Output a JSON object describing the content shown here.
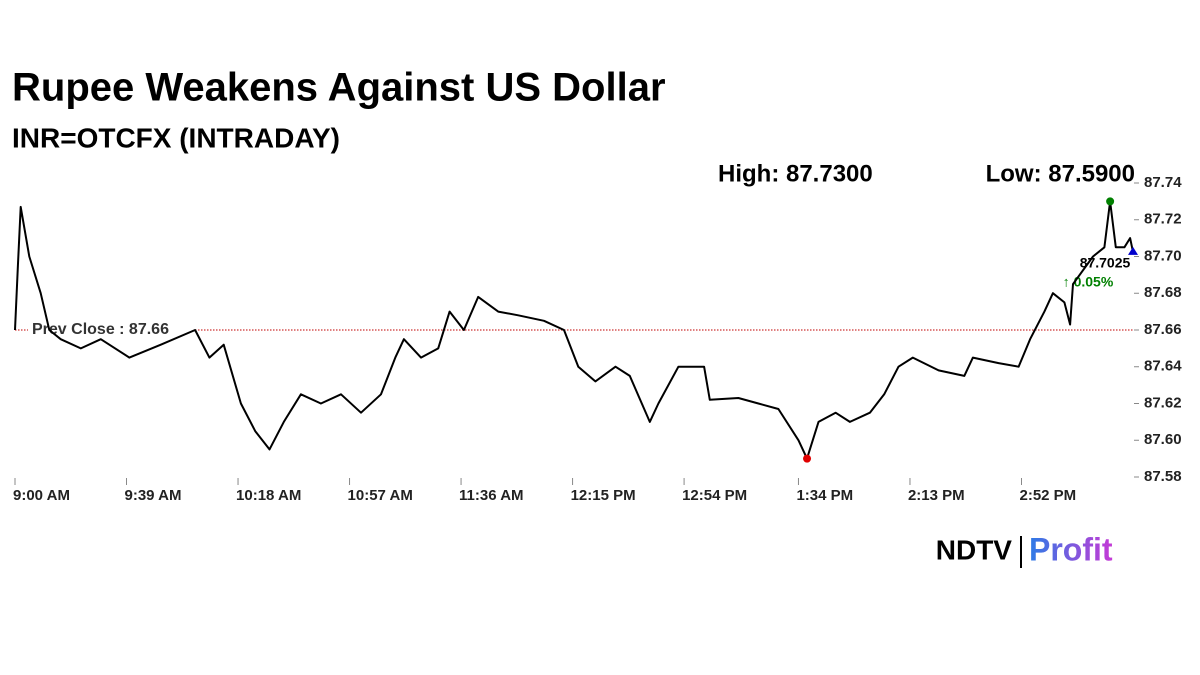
{
  "chart_data": {
    "type": "line",
    "title": "Rupee Weakens Against US Dollar",
    "subtitle": "INR=OTCFX (INTRADAY)",
    "high_label": "High: 87.7300",
    "low_label": "Low: 87.5900",
    "prev_close": 87.66,
    "prev_close_label": "Prev Close : 87.66",
    "change_label": "↑ 0.05%",
    "color": "#000000",
    "prev_close_color": "#c00000",
    "high_color": "#008000",
    "low_color": "#e00000",
    "last_color": "#0000cc",
    "x": [
      "09:00",
      "09:01",
      "09:02",
      "09:05",
      "09:09",
      "09:12",
      "09:16",
      "09:23",
      "09:30",
      "09:40",
      "09:51",
      "10:03",
      "10:08",
      "10:13",
      "10:19",
      "10:24",
      "10:29",
      "10:34",
      "10:40",
      "10:47",
      "10:54",
      "11:01",
      "11:08",
      "11:13",
      "11:16",
      "11:22",
      "11:28",
      "11:32",
      "11:37",
      "11:42",
      "11:49",
      "11:56",
      "12:05",
      "12:12",
      "12:17",
      "12:23",
      "12:30",
      "12:35",
      "12:42",
      "12:45",
      "12:52",
      "13:01",
      "13:03",
      "13:13",
      "13:20",
      "13:27",
      "13:34",
      "13:37",
      "13:41",
      "13:47",
      "13:52",
      "13:59",
      "14:04",
      "14:09",
      "14:14",
      "14:23",
      "14:32",
      "14:35",
      "14:44",
      "14:51",
      "14:55",
      "15:00",
      "15:03",
      "15:07",
      "15:09",
      "15:10",
      "15:17",
      "15:21",
      "15:23",
      "15:25",
      "15:28",
      "15:30",
      "15:31"
    ],
    "values": [
      87.66,
      87.695,
      87.727,
      87.7,
      87.68,
      87.66,
      87.655,
      87.65,
      87.655,
      87.645,
      87.652,
      87.66,
      87.645,
      87.652,
      87.62,
      87.605,
      87.595,
      87.61,
      87.625,
      87.62,
      87.625,
      87.615,
      87.625,
      87.645,
      87.655,
      87.645,
      87.65,
      87.67,
      87.66,
      87.678,
      87.67,
      87.668,
      87.665,
      87.66,
      87.64,
      87.632,
      87.64,
      87.635,
      87.61,
      87.62,
      87.64,
      87.64,
      87.622,
      87.623,
      87.62,
      87.617,
      87.6,
      87.59,
      87.61,
      87.615,
      87.61,
      87.615,
      87.625,
      87.64,
      87.645,
      87.638,
      87.635,
      87.645,
      87.642,
      87.64,
      87.655,
      87.67,
      87.68,
      87.675,
      87.663,
      87.685,
      87.7,
      87.705,
      87.73,
      87.705,
      87.705,
      87.71,
      87.7025
    ],
    "xlim": [
      "09:00",
      "15:31"
    ],
    "xticks": [
      {
        "value": "09:00",
        "label": "9:00 AM"
      },
      {
        "value": "09:39",
        "label": "9:39 AM"
      },
      {
        "value": "10:18",
        "label": "10:18 AM"
      },
      {
        "value": "10:57",
        "label": "10:57 AM"
      },
      {
        "value": "11:36",
        "label": "11:36 AM"
      },
      {
        "value": "12:15",
        "label": "12:15 PM"
      },
      {
        "value": "12:54",
        "label": "12:54 PM"
      },
      {
        "value": "13:34",
        "label": "1:34 PM"
      },
      {
        "value": "14:13",
        "label": "2:13 PM"
      },
      {
        "value": "14:52",
        "label": "2:52 PM"
      }
    ],
    "ylim": [
      87.58,
      87.74
    ],
    "yticks": [
      87.58,
      {
        "value": 87.6,
        "label": "87.60"
      },
      87.62,
      87.64,
      87.66,
      87.68,
      {
        "value": 87.7,
        "label": "87.70"
      },
      87.72,
      87.74
    ],
    "logo": {
      "brand": "NDTV",
      "product": "Profit"
    }
  }
}
